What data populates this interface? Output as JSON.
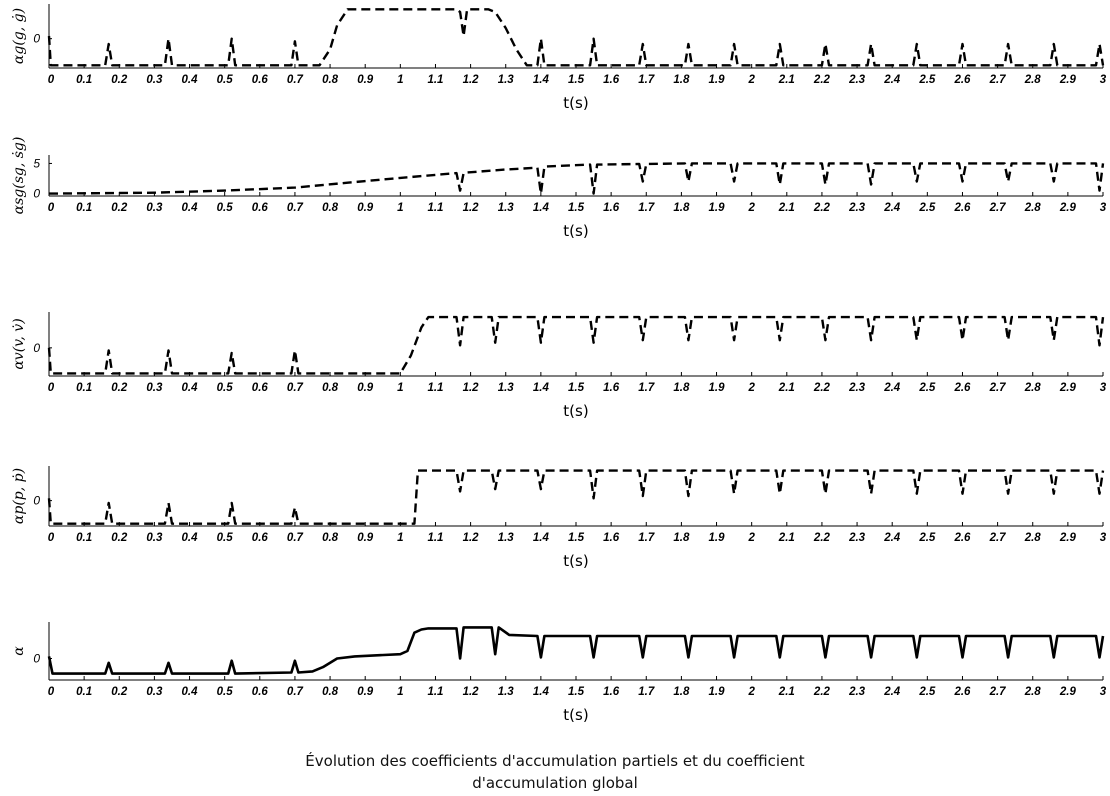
{
  "caption": {
    "line1": "Évolution des coefficients d'accumulation partiels et du coefficient",
    "line2": "d'accumulation global"
  },
  "chart_data": [
    {
      "type": "line",
      "ylabel": "αg(g, ġ)",
      "xlabel": "t(s)",
      "xlim": [
        0,
        3
      ],
      "xticks": [
        "0",
        "0.1",
        "0.2",
        "0.3",
        "0.4",
        "0.5",
        "0.6",
        "0.7",
        "0.8",
        "0.9",
        "1",
        "1.1",
        "1.2",
        "1.3",
        "1.4",
        "1.5",
        "1.6",
        "1.7",
        "1.8",
        "1.9",
        "2",
        "2.1",
        "2.2",
        "2.3",
        "2.4",
        "2.5",
        "2.6",
        "2.7",
        "2.8",
        "2.9",
        "3"
      ],
      "ylim": [
        -1.1,
        1.3
      ],
      "yticks": [
        "0"
      ],
      "line_style": "dashed",
      "series": [
        {
          "x": [
            0,
            0.005,
            0.015,
            0.16,
            0.17,
            0.18,
            0.33,
            0.34,
            0.35,
            0.51,
            0.52,
            0.53,
            0.69,
            0.7,
            0.71,
            0.77,
            0.8,
            0.82,
            0.85,
            1.16,
            1.17,
            1.18,
            1.19,
            1.25,
            1.27,
            1.3,
            1.33,
            1.36,
            1.39,
            1.4,
            1.41,
            1.54,
            1.55,
            1.56,
            1.68,
            1.69,
            1.7,
            1.81,
            1.82,
            1.83,
            1.94,
            1.95,
            1.96,
            2.07,
            2.08,
            2.09,
            2.2,
            2.21,
            2.22,
            2.33,
            2.34,
            2.35,
            2.46,
            2.47,
            2.48,
            2.59,
            2.6,
            2.61,
            2.72,
            2.73,
            2.74,
            2.85,
            2.86,
            2.87,
            2.98,
            2.99,
            3.0
          ],
          "y": [
            0.1,
            -1.0,
            -1.0,
            -1.0,
            -0.2,
            -1.0,
            -1.0,
            0.0,
            -1.0,
            -1.0,
            0.0,
            -1.0,
            -1.0,
            -0.1,
            -1.0,
            -1.0,
            -0.4,
            0.5,
            1.1,
            1.1,
            1.0,
            0.1,
            1.1,
            1.1,
            1.0,
            0.4,
            -0.4,
            -1.0,
            -1.0,
            0.0,
            -1.0,
            -1.0,
            0.0,
            -1.0,
            -1.0,
            -0.2,
            -1.0,
            -1.0,
            -0.2,
            -1.0,
            -1.0,
            -0.2,
            -1.0,
            -1.0,
            -0.2,
            -1.0,
            -1.0,
            -0.2,
            -1.0,
            -1.0,
            -0.2,
            -1.0,
            -1.0,
            -0.2,
            -1.0,
            -1.0,
            -0.2,
            -1.0,
            -1.0,
            -0.2,
            -1.0,
            -1.0,
            -0.2,
            -1.0,
            -1.0,
            -0.2,
            -1.0
          ]
        }
      ]
    },
    {
      "type": "line",
      "ylabel": "αsg(sg, ṡg)",
      "xlabel": "t(s)",
      "xlim": [
        0,
        3
      ],
      "xticks": [
        "0",
        "0.1",
        "0.2",
        "0.3",
        "0.4",
        "0.5",
        "0.6",
        "0.7",
        "0.8",
        "0.9",
        "1",
        "1.1",
        "1.2",
        "1.3",
        "1.4",
        "1.5",
        "1.6",
        "1.7",
        "1.8",
        "1.9",
        "2",
        "2.1",
        "2.2",
        "2.3",
        "2.4",
        "2.5",
        "2.6",
        "2.7",
        "2.8",
        "2.9",
        "3"
      ],
      "ylim": [
        -0.4,
        6.4
      ],
      "yticks": [
        "5",
        "0"
      ],
      "line_style": "dashed",
      "series": [
        {
          "x": [
            0,
            0.3,
            0.5,
            0.7,
            0.85,
            1.0,
            1.1,
            1.16,
            1.17,
            1.18,
            1.19,
            1.3,
            1.39,
            1.4,
            1.41,
            1.54,
            1.55,
            1.56,
            1.68,
            1.69,
            1.7,
            1.81,
            1.82,
            1.83,
            1.94,
            1.95,
            1.96,
            2.07,
            2.08,
            2.09,
            2.2,
            2.21,
            2.22,
            2.33,
            2.34,
            2.35,
            2.46,
            2.47,
            2.48,
            2.59,
            2.6,
            2.61,
            2.72,
            2.73,
            2.74,
            2.85,
            2.86,
            2.87,
            2.98,
            2.99,
            3.0
          ],
          "y": [
            0,
            0.15,
            0.5,
            1.0,
            1.8,
            2.6,
            3.1,
            3.4,
            0.5,
            3.4,
            3.5,
            4.0,
            4.3,
            0.0,
            4.5,
            4.8,
            0.0,
            4.8,
            4.9,
            2.0,
            4.9,
            5.0,
            2.0,
            5.0,
            5.0,
            2.0,
            5.0,
            5.0,
            1.5,
            5.0,
            5.0,
            1.5,
            5.0,
            5.0,
            1.5,
            5.0,
            5.0,
            2.0,
            5.0,
            5.0,
            2.0,
            5.0,
            5.0,
            2.0,
            5.0,
            5.0,
            2.0,
            5.0,
            5.0,
            0.5,
            5.0
          ]
        }
      ]
    },
    {
      "type": "line",
      "ylabel": "αv(v, v̇)",
      "xlabel": "t(s)",
      "xlim": [
        0,
        3
      ],
      "xticks": [
        "0",
        "0.1",
        "0.2",
        "0.3",
        "0.4",
        "0.5",
        "0.6",
        "0.7",
        "0.8",
        "0.9",
        "1",
        "1.1",
        "1.2",
        "1.3",
        "1.4",
        "1.5",
        "1.6",
        "1.7",
        "1.8",
        "1.9",
        "2",
        "2.1",
        "2.2",
        "2.3",
        "2.4",
        "2.5",
        "2.6",
        "2.7",
        "2.8",
        "2.9",
        "3"
      ],
      "ylim": [
        -1.1,
        1.4
      ],
      "yticks": [
        "0"
      ],
      "line_style": "dashed",
      "series": [
        {
          "x": [
            0,
            0.005,
            0.015,
            0.16,
            0.17,
            0.18,
            0.33,
            0.34,
            0.35,
            0.51,
            0.52,
            0.53,
            0.69,
            0.7,
            0.71,
            1.0,
            1.03,
            1.06,
            1.08,
            1.16,
            1.17,
            1.18,
            1.26,
            1.27,
            1.28,
            1.39,
            1.4,
            1.41,
            1.54,
            1.55,
            1.56,
            1.68,
            1.69,
            1.7,
            1.81,
            1.82,
            1.83,
            1.94,
            1.95,
            1.96,
            2.07,
            2.08,
            2.09,
            2.2,
            2.21,
            2.22,
            2.33,
            2.34,
            2.35,
            2.46,
            2.47,
            2.48,
            2.59,
            2.6,
            2.61,
            2.72,
            2.73,
            2.74,
            2.85,
            2.86,
            2.87,
            2.98,
            2.99,
            3.0
          ],
          "y": [
            0.0,
            -1.0,
            -1.0,
            -1.0,
            -0.1,
            -1.0,
            -1.0,
            -0.1,
            -1.0,
            -1.0,
            -0.2,
            -1.0,
            -1.0,
            -0.1,
            -1.0,
            -1.0,
            -0.3,
            0.8,
            1.2,
            1.2,
            0.1,
            1.2,
            1.2,
            0.2,
            1.2,
            1.2,
            0.2,
            1.2,
            1.2,
            0.2,
            1.2,
            1.2,
            0.3,
            1.2,
            1.2,
            0.3,
            1.2,
            1.2,
            0.3,
            1.2,
            1.2,
            0.3,
            1.2,
            1.2,
            0.3,
            1.2,
            1.2,
            0.3,
            1.2,
            1.2,
            0.3,
            1.2,
            1.2,
            0.3,
            1.2,
            1.2,
            0.3,
            1.2,
            1.2,
            0.3,
            1.2,
            1.2,
            0.1,
            1.2
          ]
        }
      ]
    },
    {
      "type": "line",
      "ylabel": "αp(p, ṗ)",
      "xlabel": "t(s)",
      "xlim": [
        0,
        3
      ],
      "xticks": [
        "0",
        "0.1",
        "0.2",
        "0.3",
        "0.4",
        "0.5",
        "0.6",
        "0.7",
        "0.8",
        "0.9",
        "1",
        "1.1",
        "1.2",
        "1.3",
        "1.4",
        "1.5",
        "1.6",
        "1.7",
        "1.8",
        "1.9",
        "2",
        "2.1",
        "2.2",
        "2.3",
        "2.4",
        "2.5",
        "2.6",
        "2.7",
        "2.8",
        "2.9",
        "3"
      ],
      "ylim": [
        -1.1,
        1.5
      ],
      "yticks": [
        "0"
      ],
      "line_style": "dashed",
      "series": [
        {
          "x": [
            0,
            0.005,
            0.015,
            0.16,
            0.17,
            0.18,
            0.33,
            0.34,
            0.35,
            0.51,
            0.52,
            0.53,
            0.69,
            0.7,
            0.71,
            1.04,
            1.05,
            1.16,
            1.17,
            1.18,
            1.26,
            1.27,
            1.28,
            1.39,
            1.4,
            1.41,
            1.54,
            1.55,
            1.56,
            1.68,
            1.69,
            1.7,
            1.81,
            1.82,
            1.83,
            1.94,
            1.95,
            1.96,
            2.07,
            2.08,
            2.09,
            2.2,
            2.21,
            2.22,
            2.33,
            2.34,
            2.35,
            2.46,
            2.47,
            2.48,
            2.59,
            2.6,
            2.61,
            2.72,
            2.73,
            2.74,
            2.85,
            2.86,
            2.87,
            2.98,
            2.99,
            3.0
          ],
          "y": [
            0.1,
            -1.0,
            -1.0,
            -1.0,
            -0.1,
            -1.0,
            -1.0,
            -0.1,
            -1.0,
            -1.0,
            -0.1,
            -1.0,
            -1.0,
            -0.3,
            -1.0,
            -1.0,
            1.3,
            1.3,
            0.4,
            1.3,
            1.3,
            0.5,
            1.3,
            1.3,
            0.5,
            1.3,
            1.3,
            0.1,
            1.3,
            1.3,
            0.2,
            1.3,
            1.3,
            0.2,
            1.3,
            1.3,
            0.3,
            1.3,
            1.3,
            0.3,
            1.3,
            1.3,
            0.3,
            1.3,
            1.3,
            0.3,
            1.3,
            1.3,
            0.3,
            1.3,
            1.3,
            0.3,
            1.3,
            1.3,
            0.3,
            1.3,
            1.3,
            0.3,
            1.3,
            1.3,
            0.3,
            1.3
          ]
        }
      ]
    },
    {
      "type": "line",
      "ylabel": "α",
      "xlabel": "t(s)",
      "xlim": [
        0,
        3
      ],
      "xticks": [
        "0",
        "0.1",
        "0.2",
        "0.3",
        "0.4",
        "0.5",
        "0.6",
        "0.7",
        "0.8",
        "0.9",
        "1",
        "1.1",
        "1.2",
        "1.3",
        "1.4",
        "1.5",
        "1.6",
        "1.7",
        "1.8",
        "1.9",
        "2",
        "2.1",
        "2.2",
        "2.3",
        "2.4",
        "2.5",
        "2.6",
        "2.7",
        "2.8",
        "2.9",
        "3"
      ],
      "ylim": [
        -1.0,
        1.7
      ],
      "yticks": [
        "0"
      ],
      "line_style": "solid",
      "series": [
        {
          "x": [
            0,
            0.01,
            0.02,
            0.16,
            0.17,
            0.18,
            0.33,
            0.34,
            0.35,
            0.51,
            0.52,
            0.53,
            0.69,
            0.7,
            0.71,
            0.75,
            0.78,
            0.82,
            0.87,
            1.0,
            1.02,
            1.04,
            1.06,
            1.08,
            1.16,
            1.17,
            1.18,
            1.26,
            1.27,
            1.28,
            1.31,
            1.39,
            1.4,
            1.41,
            1.54,
            1.55,
            1.56,
            1.68,
            1.69,
            1.7,
            1.81,
            1.82,
            1.83,
            1.94,
            1.95,
            1.96,
            2.07,
            2.08,
            2.09,
            2.2,
            2.21,
            2.22,
            2.33,
            2.34,
            2.35,
            2.46,
            2.47,
            2.48,
            2.59,
            2.6,
            2.61,
            2.72,
            2.73,
            2.74,
            2.85,
            2.86,
            2.87,
            2.98,
            2.99,
            3.0
          ],
          "y": [
            0.1,
            -0.7,
            -0.7,
            -0.7,
            -0.2,
            -0.7,
            -0.7,
            -0.2,
            -0.7,
            -0.7,
            -0.1,
            -0.7,
            -0.65,
            -0.1,
            -0.65,
            -0.6,
            -0.4,
            0.0,
            0.1,
            0.2,
            0.35,
            1.2,
            1.35,
            1.4,
            1.4,
            0.0,
            1.45,
            1.45,
            0.2,
            1.45,
            1.1,
            1.05,
            0.05,
            1.05,
            1.05,
            0.05,
            1.05,
            1.05,
            0.05,
            1.05,
            1.05,
            0.05,
            1.05,
            1.05,
            0.05,
            1.05,
            1.05,
            0.05,
            1.05,
            1.05,
            0.05,
            1.05,
            1.05,
            0.05,
            1.05,
            1.05,
            0.05,
            1.05,
            1.05,
            0.05,
            1.05,
            1.05,
            0.05,
            1.05,
            1.05,
            0.05,
            1.05,
            1.05,
            0.05,
            1.05
          ]
        }
      ]
    }
  ]
}
